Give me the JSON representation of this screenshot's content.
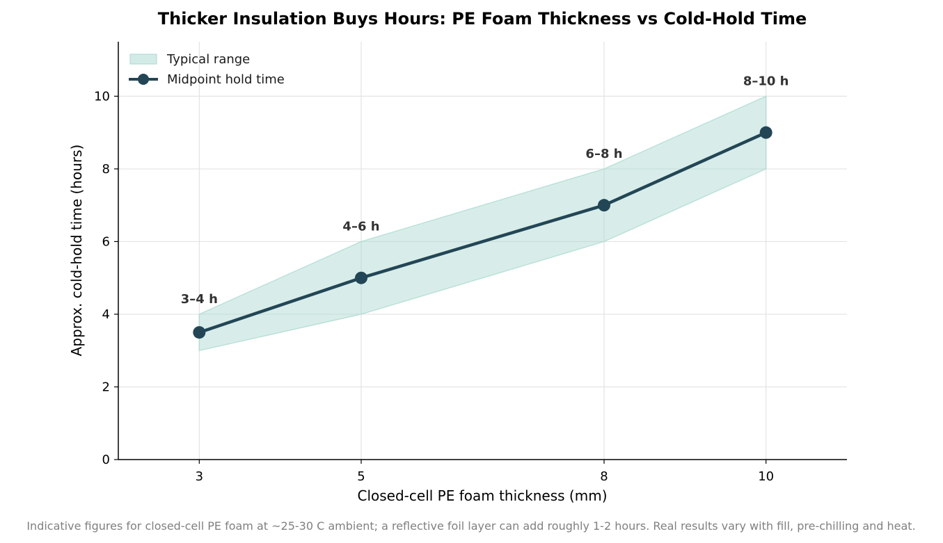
{
  "chart_data": {
    "type": "line",
    "title": "Thicker Insulation Buys Hours: PE Foam Thickness vs Cold-Hold Time",
    "xlabel": "Closed-cell PE foam thickness (mm)",
    "ylabel": "Approx. cold-hold time (hours)",
    "x": [
      3,
      5,
      8,
      10
    ],
    "x_tick_labels": [
      "3",
      "5",
      "8",
      "10"
    ],
    "xlim": [
      2,
      11
    ],
    "ylim": [
      0,
      11.5
    ],
    "y_ticks": [
      0,
      2,
      4,
      6,
      8,
      10
    ],
    "y_tick_labels": [
      "0",
      "2",
      "4",
      "6",
      "8",
      "10"
    ],
    "grid": true,
    "legend_position": "top-left",
    "series": [
      {
        "name": "Typical range",
        "kind": "band",
        "low": [
          3,
          4,
          6,
          8
        ],
        "high": [
          4,
          6,
          8,
          10
        ],
        "color": "#a8d8cf"
      },
      {
        "name": "Midpoint hold time",
        "kind": "line",
        "values": [
          3.5,
          5,
          7,
          9
        ],
        "color": "#234656"
      }
    ],
    "annotations": [
      "3–4 h",
      "4–6 h",
      "6–8 h",
      "8–10 h"
    ],
    "footnote": "Indicative figures for closed-cell PE foam at ~25-30 C ambient; a reflective foil layer can add roughly 1-2 hours. Real results vary with fill, pre-chilling and heat."
  }
}
